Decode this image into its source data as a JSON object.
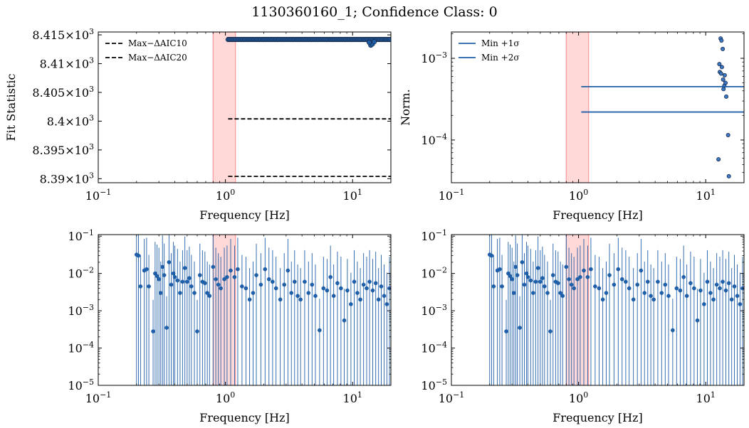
{
  "figure": {
    "title": "1130360160_1; Confidence Class: 0",
    "colors": {
      "series": "#1f5fa8",
      "band": "#ff9999",
      "dashed": "#000000",
      "marker_edge": "#1a2a4a"
    }
  },
  "chart_data": [
    {
      "id": "fit",
      "type": "scatter",
      "xlabel": "Frequency [Hz]",
      "ylabel": "Fit Statistic",
      "xscale": "log",
      "xlim": [
        0.1,
        20
      ],
      "ylim": [
        8389.3,
        8415.5
      ],
      "xticks": [
        {
          "v": 0.1,
          "b": "10",
          "e": "−1"
        },
        {
          "v": 1,
          "b": "10",
          "e": "0"
        },
        {
          "v": 10,
          "b": "10",
          "e": "1"
        }
      ],
      "yticks": [
        {
          "v": 8390,
          "m": "8.39",
          "e": "3"
        },
        {
          "v": 8395,
          "m": "8.395",
          "e": "3"
        },
        {
          "v": 8400,
          "m": "8.4",
          "e": "3"
        },
        {
          "v": 8405,
          "m": "8.405",
          "e": "3"
        },
        {
          "v": 8410,
          "m": "8.41",
          "e": "3"
        },
        {
          "v": 8415,
          "m": "8.415",
          "e": "3"
        }
      ],
      "band": [
        0.8,
        1.2
      ],
      "hlines": [
        {
          "name": "Max−ΔAIC10",
          "y": 8400.4,
          "xmin": 1.05,
          "style": "dashed"
        },
        {
          "name": "Max−ΔAIC20",
          "y": 8390.4,
          "xmin": 1.05,
          "style": "dashed"
        }
      ],
      "legend": {
        "position": "top-left",
        "entries": [
          "Max−ΔAIC10",
          "Max−ΔAIC20"
        ]
      },
      "points": {
        "xmin": 1.05,
        "xmax": 20,
        "n": 120,
        "base": 8414.2,
        "dips": [
          {
            "x": 13.9,
            "y": 8413.2
          },
          {
            "x": 14.3,
            "y": 8413.4
          },
          {
            "x": 13.5,
            "y": 8413.7
          },
          {
            "x": 14.8,
            "y": 8413.8
          }
        ]
      }
    },
    {
      "id": "norm",
      "type": "scatter",
      "xlabel": "Frequency [Hz]",
      "ylabel": "Norm.",
      "xscale": "log",
      "yscale": "log",
      "xlim": [
        0.1,
        20
      ],
      "ylim": [
        3e-05,
        0.0021
      ],
      "xticks": [
        {
          "v": 0.1,
          "b": "10",
          "e": "−1"
        },
        {
          "v": 1,
          "b": "10",
          "e": "0"
        },
        {
          "v": 10,
          "b": "10",
          "e": "1"
        }
      ],
      "yticks": [
        {
          "v": 0.0001,
          "b": "10",
          "e": "−4"
        },
        {
          "v": 0.001,
          "b": "10",
          "e": "−3"
        }
      ],
      "band": [
        0.8,
        1.2
      ],
      "hlines": [
        {
          "name": "Min +1σ",
          "y": 0.00045,
          "xmin": 1.05,
          "style": "solid"
        },
        {
          "name": "Min +2σ",
          "y": 0.00022,
          "xmin": 1.05,
          "style": "solid"
        }
      ],
      "legend": {
        "position": "top-left",
        "entries": [
          "Min +1σ",
          "Min +2σ"
        ]
      },
      "points": [
        [
          13.1,
          0.00175
        ],
        [
          13.3,
          0.00165
        ],
        [
          13.6,
          0.0013
        ],
        [
          12.8,
          0.00085
        ],
        [
          13.4,
          0.00078
        ],
        [
          12.9,
          0.00068
        ],
        [
          13.2,
          0.00065
        ],
        [
          14.1,
          0.00062
        ],
        [
          13.7,
          0.00055
        ],
        [
          14.3,
          0.0005
        ],
        [
          14.0,
          0.00046
        ],
        [
          13.8,
          0.00042
        ],
        [
          14.5,
          0.00034
        ],
        [
          15.0,
          0.000115
        ],
        [
          12.6,
          5.8e-05
        ],
        [
          15.2,
          3.6e-05
        ]
      ]
    },
    {
      "id": "spec-left",
      "type": "scatter",
      "xlabel": "Frequency [Hz]",
      "ylabel": "",
      "xscale": "log",
      "yscale": "log",
      "xlim": [
        0.1,
        20
      ],
      "ylim": [
        1e-05,
        0.11
      ],
      "xticks": [
        {
          "v": 0.1,
          "b": "10",
          "e": "−1"
        },
        {
          "v": 1,
          "b": "10",
          "e": "0"
        },
        {
          "v": 10,
          "b": "10",
          "e": "1"
        }
      ],
      "yticks": [
        {
          "v": 1e-05,
          "b": "10",
          "e": "−5"
        },
        {
          "v": 0.0001,
          "b": "10",
          "e": "−4"
        },
        {
          "v": 0.001,
          "b": "10",
          "e": "−3"
        },
        {
          "v": 0.01,
          "b": "10",
          "e": "−2"
        },
        {
          "v": 0.1,
          "b": "10",
          "e": "−1"
        }
      ],
      "band": [
        0.8,
        1.2
      ],
      "errorbar_floor": 1e-05,
      "points": [
        [
          0.2,
          0.032
        ],
        [
          0.207,
          0.03
        ],
        [
          0.215,
          0.0045
        ],
        [
          0.23,
          0.012
        ],
        [
          0.24,
          0.013
        ],
        [
          0.25,
          0.0045
        ],
        [
          0.27,
          0.00028
        ],
        [
          0.28,
          0.01
        ],
        [
          0.29,
          0.0085
        ],
        [
          0.3,
          0.007
        ],
        [
          0.31,
          0.003
        ],
        [
          0.32,
          0.015
        ],
        [
          0.33,
          0.009
        ],
        [
          0.345,
          0.00035
        ],
        [
          0.36,
          0.02
        ],
        [
          0.375,
          0.005
        ],
        [
          0.39,
          0.01
        ],
        [
          0.4,
          0.008
        ],
        [
          0.42,
          0.0065
        ],
        [
          0.44,
          0.003
        ],
        [
          0.46,
          0.006
        ],
        [
          0.48,
          0.014
        ],
        [
          0.5,
          0.006
        ],
        [
          0.52,
          0.0075
        ],
        [
          0.54,
          0.0045
        ],
        [
          0.57,
          0.003
        ],
        [
          0.6,
          0.00028
        ],
        [
          0.63,
          0.009
        ],
        [
          0.66,
          0.006
        ],
        [
          0.69,
          0.0055
        ],
        [
          0.72,
          0.003
        ],
        [
          0.75,
          0.0025
        ],
        [
          0.8,
          0.015
        ],
        [
          0.84,
          0.007
        ],
        [
          0.88,
          0.005
        ],
        [
          0.92,
          0.004
        ],
        [
          0.98,
          0.007
        ],
        [
          1.03,
          0.008
        ],
        [
          1.1,
          0.012
        ],
        [
          1.18,
          0.008
        ],
        [
          1.25,
          0.013
        ],
        [
          1.35,
          0.0045
        ],
        [
          1.45,
          0.004
        ],
        [
          1.55,
          0.002
        ],
        [
          1.65,
          0.003
        ],
        [
          1.75,
          0.009
        ],
        [
          1.9,
          0.005
        ],
        [
          2.05,
          0.013
        ],
        [
          2.2,
          0.007
        ],
        [
          2.35,
          0.006
        ],
        [
          2.5,
          0.004
        ],
        [
          2.7,
          0.002
        ],
        [
          2.9,
          0.005
        ],
        [
          3.1,
          0.012
        ],
        [
          3.3,
          0.003
        ],
        [
          3.5,
          0.006
        ],
        [
          3.7,
          0.0025
        ],
        [
          3.9,
          0.002
        ],
        [
          4.2,
          0.006
        ],
        [
          4.5,
          0.003
        ],
        [
          4.8,
          0.005
        ],
        [
          5.1,
          0.0025
        ],
        [
          5.5,
          0.0003
        ],
        [
          5.9,
          0.004
        ],
        [
          6.3,
          0.0035
        ],
        [
          6.7,
          0.008
        ],
        [
          7.1,
          0.0025
        ],
        [
          7.6,
          0.0055
        ],
        [
          8.1,
          0.004
        ],
        [
          8.6,
          0.00055
        ],
        [
          9.1,
          0.0035
        ],
        [
          9.7,
          0.0015
        ],
        [
          10.3,
          0.006
        ],
        [
          10.9,
          0.003
        ],
        [
          11.5,
          0.002
        ],
        [
          12.2,
          0.005
        ],
        [
          12.9,
          0.004
        ],
        [
          13.6,
          0.006
        ],
        [
          14.4,
          0.0035
        ],
        [
          15.2,
          0.0055
        ],
        [
          16.0,
          0.002
        ],
        [
          16.8,
          0.0045
        ],
        [
          17.7,
          0.0025
        ],
        [
          18.6,
          0.0015
        ],
        [
          19.5,
          0.004
        ]
      ]
    },
    {
      "id": "spec-right",
      "type": "scatter",
      "xlabel": "Frequency [Hz]",
      "ylabel": "",
      "xscale": "log",
      "yscale": "log",
      "xlim": [
        0.1,
        20
      ],
      "ylim": [
        1e-05,
        0.11
      ],
      "xticks": [
        {
          "v": 0.1,
          "b": "10",
          "e": "−1"
        },
        {
          "v": 1,
          "b": "10",
          "e": "0"
        },
        {
          "v": 10,
          "b": "10",
          "e": "1"
        }
      ],
      "yticks": [
        {
          "v": 1e-05,
          "b": "10",
          "e": "−5"
        },
        {
          "v": 0.0001,
          "b": "10",
          "e": "−4"
        },
        {
          "v": 0.001,
          "b": "10",
          "e": "−3"
        },
        {
          "v": 0.01,
          "b": "10",
          "e": "−2"
        },
        {
          "v": 0.1,
          "b": "10",
          "e": "−1"
        }
      ],
      "band": [
        0.8,
        1.2
      ],
      "errorbar_floor": 1e-05,
      "points": [
        [
          0.2,
          0.032
        ],
        [
          0.207,
          0.03
        ],
        [
          0.215,
          0.0045
        ],
        [
          0.23,
          0.012
        ],
        [
          0.24,
          0.013
        ],
        [
          0.25,
          0.0045
        ],
        [
          0.27,
          0.00028
        ],
        [
          0.28,
          0.01
        ],
        [
          0.29,
          0.0085
        ],
        [
          0.3,
          0.007
        ],
        [
          0.31,
          0.003
        ],
        [
          0.32,
          0.015
        ],
        [
          0.33,
          0.009
        ],
        [
          0.345,
          0.00035
        ],
        [
          0.36,
          0.02
        ],
        [
          0.375,
          0.005
        ],
        [
          0.39,
          0.01
        ],
        [
          0.4,
          0.008
        ],
        [
          0.42,
          0.0065
        ],
        [
          0.44,
          0.003
        ],
        [
          0.46,
          0.006
        ],
        [
          0.48,
          0.014
        ],
        [
          0.5,
          0.006
        ],
        [
          0.52,
          0.0075
        ],
        [
          0.54,
          0.0045
        ],
        [
          0.57,
          0.003
        ],
        [
          0.6,
          0.00028
        ],
        [
          0.63,
          0.009
        ],
        [
          0.66,
          0.006
        ],
        [
          0.69,
          0.0055
        ],
        [
          0.72,
          0.003
        ],
        [
          0.75,
          0.0025
        ],
        [
          0.8,
          0.015
        ],
        [
          0.84,
          0.007
        ],
        [
          0.88,
          0.005
        ],
        [
          0.92,
          0.004
        ],
        [
          0.98,
          0.007
        ],
        [
          1.03,
          0.008
        ],
        [
          1.1,
          0.012
        ],
        [
          1.18,
          0.008
        ],
        [
          1.25,
          0.013
        ],
        [
          1.35,
          0.0045
        ],
        [
          1.45,
          0.004
        ],
        [
          1.55,
          0.002
        ],
        [
          1.65,
          0.003
        ],
        [
          1.75,
          0.009
        ],
        [
          1.9,
          0.005
        ],
        [
          2.05,
          0.013
        ],
        [
          2.2,
          0.007
        ],
        [
          2.35,
          0.006
        ],
        [
          2.5,
          0.004
        ],
        [
          2.7,
          0.002
        ],
        [
          2.9,
          0.005
        ],
        [
          3.1,
          0.012
        ],
        [
          3.3,
          0.003
        ],
        [
          3.5,
          0.006
        ],
        [
          3.7,
          0.0025
        ],
        [
          3.9,
          0.002
        ],
        [
          4.2,
          0.006
        ],
        [
          4.5,
          0.003
        ],
        [
          4.8,
          0.005
        ],
        [
          5.1,
          0.0025
        ],
        [
          5.5,
          0.0003
        ],
        [
          5.9,
          0.004
        ],
        [
          6.3,
          0.0035
        ],
        [
          6.7,
          0.008
        ],
        [
          7.1,
          0.0025
        ],
        [
          7.6,
          0.0055
        ],
        [
          8.1,
          0.004
        ],
        [
          8.6,
          0.00055
        ],
        [
          9.1,
          0.0035
        ],
        [
          9.7,
          0.0015
        ],
        [
          10.3,
          0.006
        ],
        [
          10.9,
          0.003
        ],
        [
          11.5,
          0.002
        ],
        [
          12.2,
          0.005
        ],
        [
          12.9,
          0.004
        ],
        [
          13.6,
          0.006
        ],
        [
          14.4,
          0.0035
        ],
        [
          15.2,
          0.0055
        ],
        [
          16.0,
          0.002
        ],
        [
          16.8,
          0.0045
        ],
        [
          17.7,
          0.0025
        ],
        [
          18.6,
          0.0015
        ],
        [
          19.5,
          0.004
        ]
      ]
    }
  ]
}
